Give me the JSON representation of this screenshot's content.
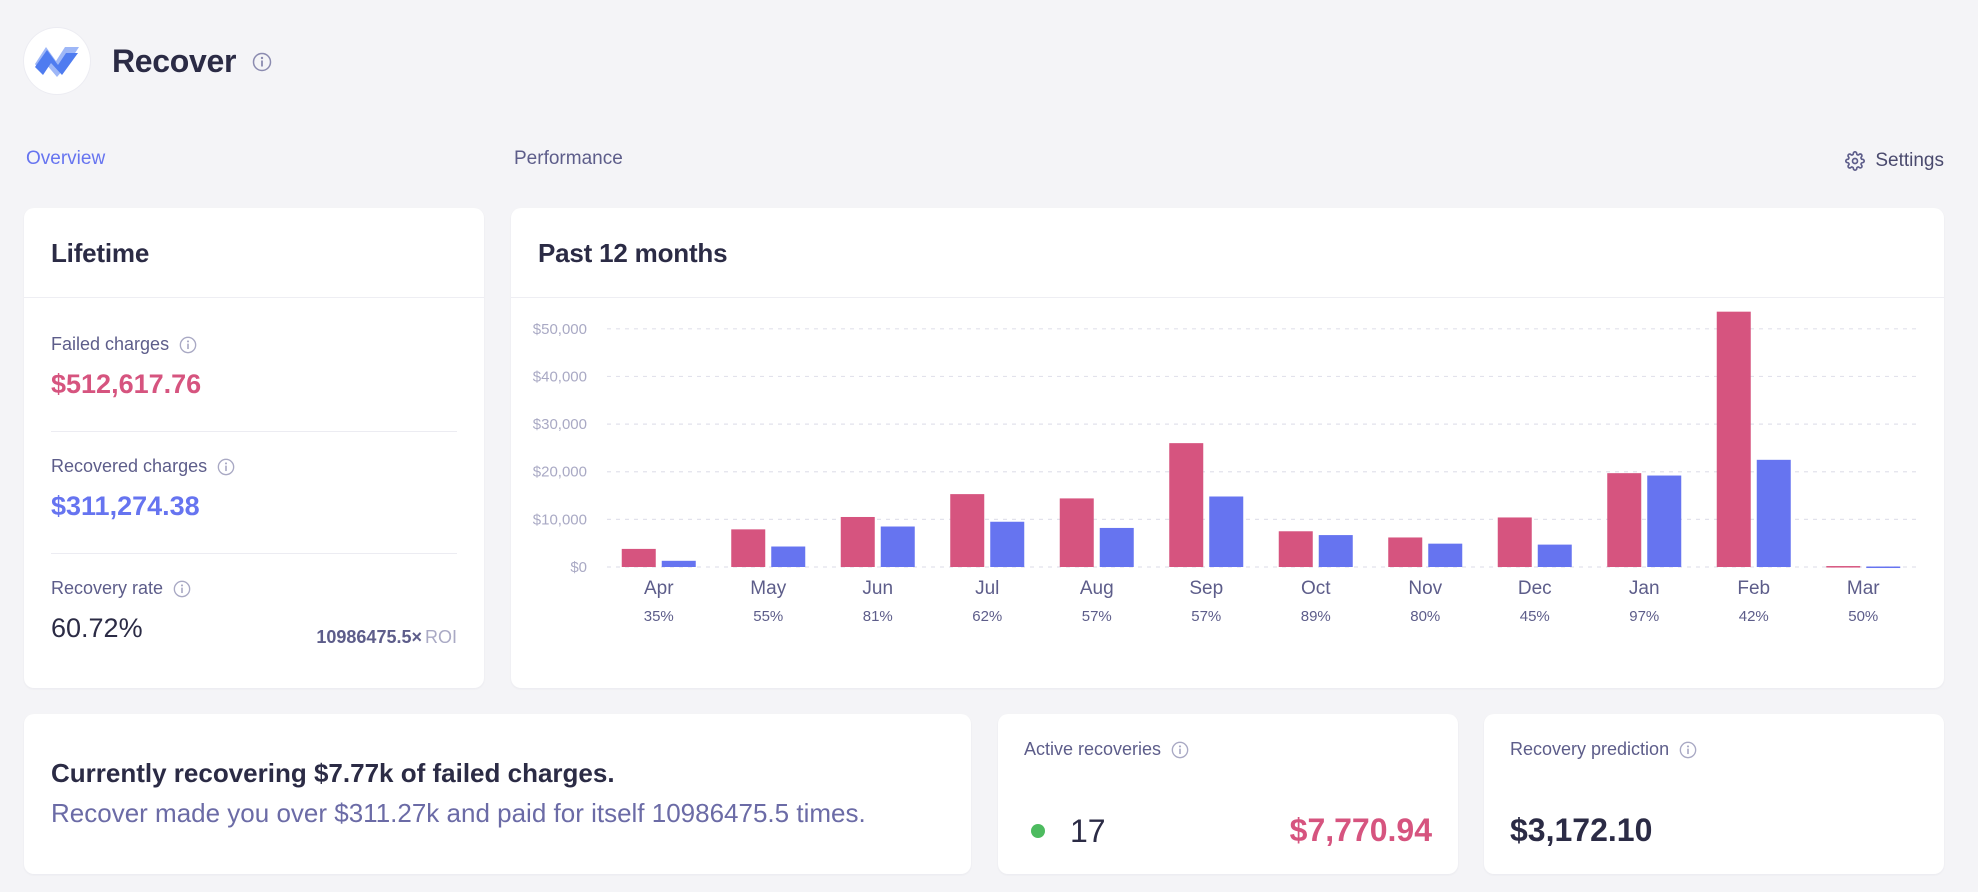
{
  "app": {
    "title": "Recover",
    "brand_color": "#4f7cf0"
  },
  "tabs": [
    {
      "label": "Overview",
      "active": true
    },
    {
      "label": "Performance",
      "active": false
    }
  ],
  "settings_label": "Settings",
  "lifetime": {
    "title": "Lifetime",
    "failed_label": "Failed charges",
    "failed_value": "$512,617.76",
    "recovered_label": "Recovered charges",
    "recovered_value": "$311,274.38",
    "rate_label": "Recovery rate",
    "rate_value": "60.72%",
    "roi_value": "10986475.5×",
    "roi_suffix": "ROI"
  },
  "past": {
    "title": "Past 12 months"
  },
  "chart_data": {
    "type": "bar",
    "categories": [
      "Apr",
      "May",
      "Jun",
      "Jul",
      "Aug",
      "Sep",
      "Oct",
      "Nov",
      "Dec",
      "Jan",
      "Feb",
      "Mar"
    ],
    "sublabels": [
      "35%",
      "55%",
      "81%",
      "62%",
      "57%",
      "57%",
      "89%",
      "80%",
      "45%",
      "97%",
      "42%",
      "50%"
    ],
    "series": [
      {
        "color": "#d6547f",
        "values": [
          3800,
          7900,
          10500,
          15300,
          14400,
          26000,
          7500,
          6200,
          10400,
          19700,
          53600,
          200
        ]
      },
      {
        "color": "#6674f0",
        "values": [
          1300,
          4300,
          8500,
          9500,
          8200,
          14800,
          6700,
          4900,
          4700,
          19200,
          22500,
          100
        ]
      }
    ],
    "yticks": [
      0,
      10000,
      20000,
      30000,
      40000,
      50000
    ],
    "ytick_labels": [
      "$0",
      "$10,000",
      "$20,000",
      "$30,000",
      "$40,000",
      "$50,000"
    ],
    "ylim": [
      0,
      55000
    ],
    "grid": true
  },
  "summary": {
    "line1": "Currently recovering $7.77k of failed charges.",
    "line2": "Recover made you over $311.27k and paid for itself 10986475.5 times."
  },
  "active": {
    "label": "Active recoveries",
    "count": "17",
    "amount": "$7,770.94",
    "status_color": "#4dbb5f"
  },
  "prediction": {
    "label": "Recovery prediction",
    "value": "$3,172.10"
  }
}
